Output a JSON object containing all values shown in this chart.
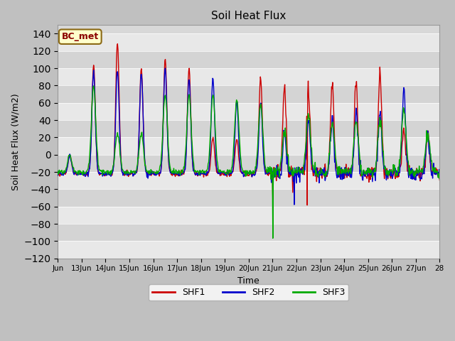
{
  "title": "Soil Heat Flux",
  "ylabel": "Soil Heat Flux (W/m2)",
  "xlabel": "Time",
  "ylim": [
    -120,
    150
  ],
  "yticks": [
    -120,
    -100,
    -80,
    -60,
    -40,
    -20,
    0,
    20,
    40,
    60,
    80,
    100,
    120,
    140
  ],
  "colors": {
    "SHF1": "#cc0000",
    "SHF2": "#0000cc",
    "SHF3": "#00aa00"
  },
  "legend_label": "BC_met",
  "x_tick_labels": [
    "Jun",
    "13Jun",
    "14Jun",
    "15Jun",
    "16Jun",
    "17Jun",
    "18Jun",
    "19Jun",
    "20Jun",
    "21Jun",
    "22Jun",
    "23Jun",
    "24Jun",
    "25Jun",
    "26Jun",
    "27Jun",
    "28"
  ],
  "linewidth": 1.0,
  "n_days": 16,
  "pts_per_day": 48,
  "fig_bg": "#c0c0c0",
  "ax_bg": "#d8d8d8"
}
